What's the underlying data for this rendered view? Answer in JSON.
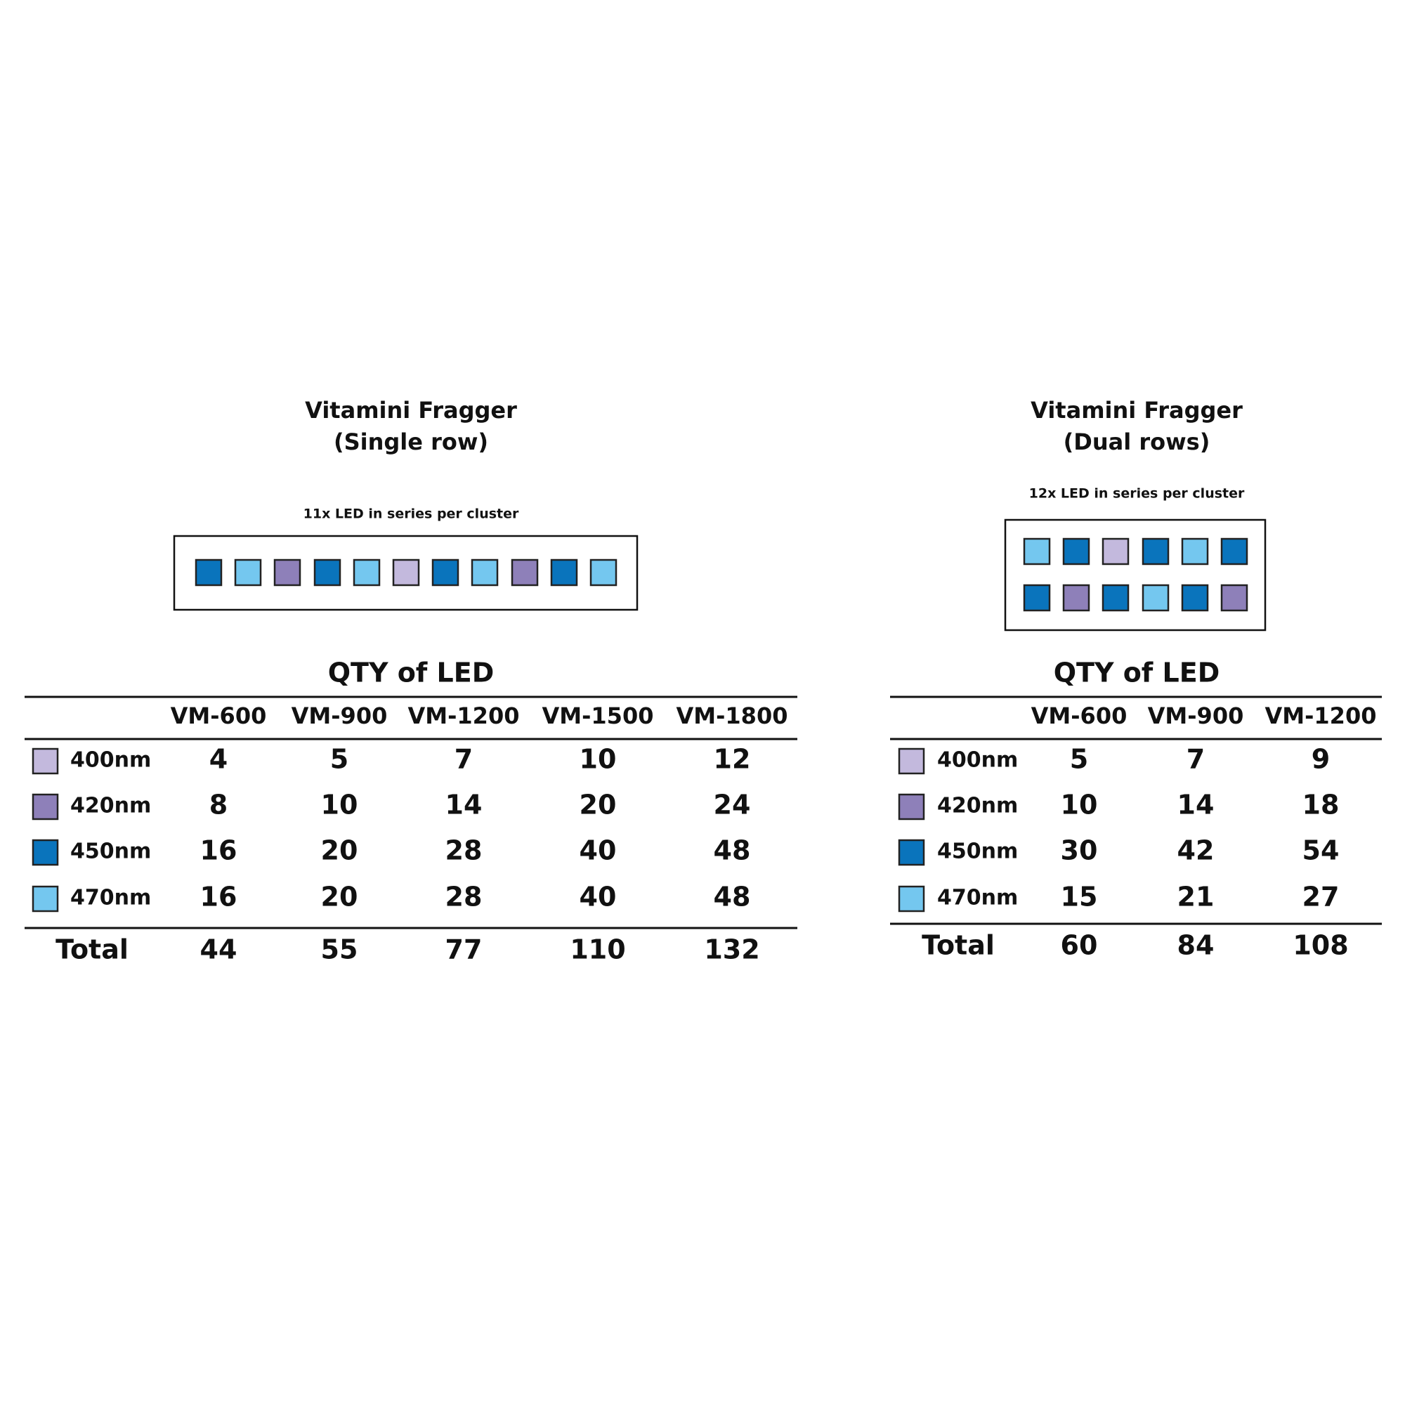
{
  "panels": [
    {
      "title": [
        "Vitamini Fragger",
        "(Single row)"
      ],
      "led_caption": "11x LED in series per cluster",
      "table": {
        "title": "QTY of LED",
        "columns": [
          "VM-600",
          "VM-900",
          "VM-1200",
          "VM-1500",
          "VM-1800"
        ],
        "rows": [
          {
            "label": "400nm",
            "values": [
              4,
              5,
              7,
              10,
              12
            ]
          },
          {
            "label": "420nm",
            "values": [
              8,
              10,
              14,
              20,
              24
            ]
          },
          {
            "label": "450nm",
            "values": [
              16,
              20,
              28,
              40,
              48
            ]
          },
          {
            "label": "470nm",
            "values": [
              16,
              20,
              28,
              40,
              48
            ]
          }
        ],
        "total": {
          "label": "Total",
          "values": [
            44,
            55,
            77,
            110,
            132
          ]
        }
      }
    },
    {
      "title": [
        "Vitamini Fragger",
        "(Dual rows)"
      ],
      "led_caption": "12x LED in series per cluster",
      "table": {
        "title": "QTY of LED",
        "columns": [
          "VM-600",
          "VM-900",
          "VM-1200"
        ],
        "rows": [
          {
            "label": "400nm",
            "values": [
              5,
              7,
              9
            ]
          },
          {
            "label": "420nm",
            "values": [
              10,
              14,
              18
            ]
          },
          {
            "label": "450nm",
            "values": [
              30,
              42,
              54
            ]
          },
          {
            "label": "470nm",
            "values": [
              15,
              21,
              27
            ]
          }
        ],
        "total": {
          "label": "Total",
          "values": [
            60,
            84,
            108
          ]
        }
      }
    }
  ]
}
